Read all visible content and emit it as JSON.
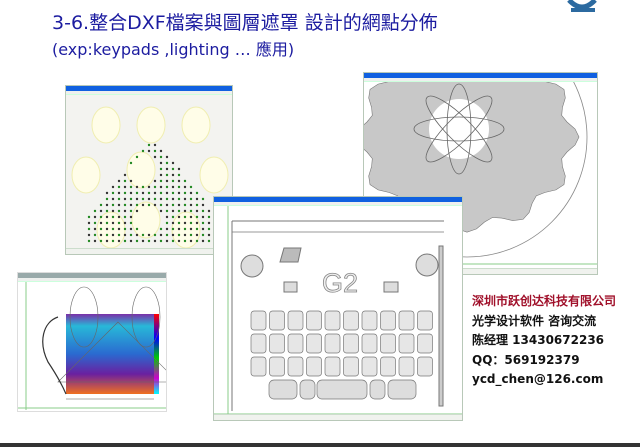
{
  "slide": {
    "title": "3-6.整合DXF檔案與圖層遮罩 設計的網點分佈",
    "subtitle": "(exp:keypads  ,lighting  … 應用)",
    "title_color": "#1c1ca0",
    "logo": "G2"
  },
  "screenshots": {
    "keypad_window": {
      "logo_text": "G2"
    }
  },
  "contact": {
    "company": "深圳市跃创达科技有限公司",
    "service": "光学设计软件  咨询交流",
    "manager": "陈经理   13430672236",
    "qq": "QQ：569192379",
    "email": "ycd_chen@126.com",
    "company_color": "#a0102a"
  }
}
